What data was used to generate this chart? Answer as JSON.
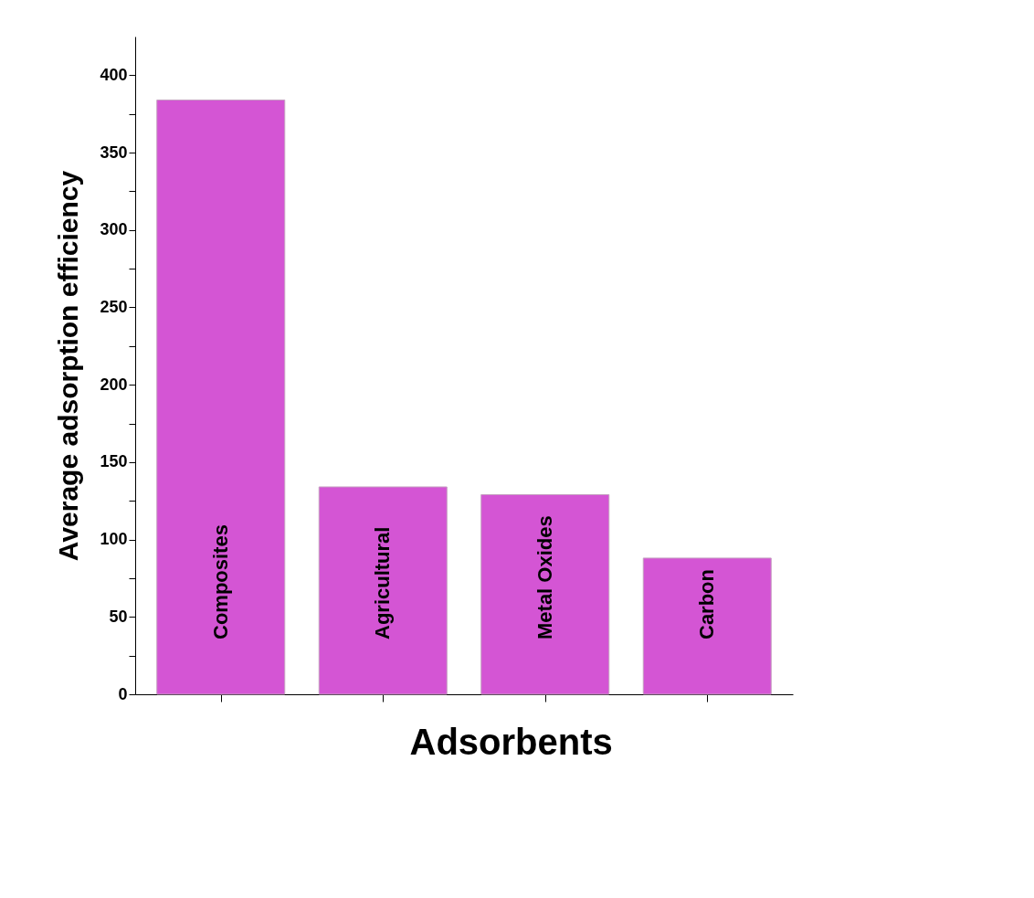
{
  "chart_data": {
    "type": "bar",
    "xlabel": "Adsorbents",
    "ylabel": "Average adsorption efficiency",
    "categories": [
      "Composites",
      "Agricultural",
      "Metal Oxides",
      "Carbon"
    ],
    "values": [
      384,
      134,
      129,
      88
    ],
    "color": "#d455d4",
    "ylim": [
      0,
      425
    ],
    "yticks": [
      0,
      {
        "value": 25,
        "label": null
      },
      50,
      {
        "value": 75,
        "label": null
      },
      100,
      {
        "value": 125,
        "label": null
      },
      150,
      {
        "value": 175,
        "label": null
      },
      200,
      {
        "value": 225,
        "label": null
      },
      250,
      {
        "value": 275,
        "label": null
      },
      300,
      {
        "value": 325,
        "label": null
      },
      350,
      {
        "value": 375,
        "label": null
      },
      400
    ],
    "grid": false
  }
}
